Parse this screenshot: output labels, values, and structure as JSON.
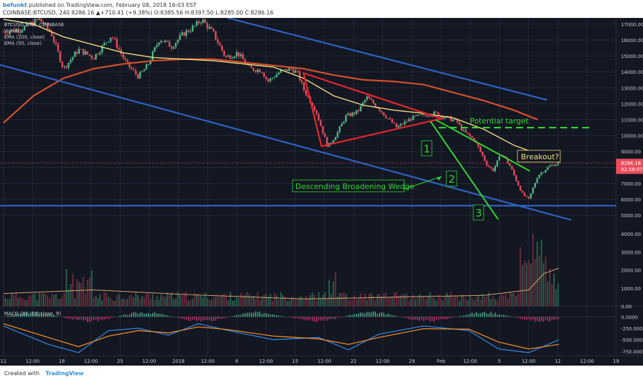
{
  "header": {
    "author": "befunkt",
    "published_text": " published on TradingView.com, February 08, 2018 16:03 EST",
    "ohlc_line": "COINBASE:BTCUSD, 240  8286.16  ▲+710.41 (+9.38%)  O:8385.56 H:8397.50 L:8285.00 C:8286.16"
  },
  "legends": {
    "symbol": "BTCUSD, 240, COINBASE",
    "vol": "Vol (20)",
    "ema200": "EMA (200, close)",
    "ema50": "EMA (50, close)",
    "macd": "MACD (12, 26, close, 9)"
  },
  "footer": {
    "created_with": "Created with",
    "brand": "TradingView"
  },
  "colors": {
    "bg": "#131722",
    "grid": "#232838",
    "up": "#53b987",
    "down": "#eb4d5c",
    "ema200": "#d9502c",
    "ema50": "#f3e282",
    "channel": "#2e63c6",
    "triangle": "#e8262e",
    "wedge": "#32d632",
    "target": "#32d632",
    "label_yellow": "#f3e282",
    "macd_line": "#2f86e0",
    "signal_line": "#f08a24"
  },
  "chart_data": {
    "type": "candlestick",
    "timeframe": "240",
    "price_axis_ticks": [
      17000,
      16000,
      15000,
      14000,
      13000,
      12000,
      11000,
      10000,
      9000,
      8000,
      7000,
      6000,
      5000
    ],
    "price_ylim": [
      4400,
      17300
    ],
    "volume_axis_ticks": [
      "4000.00",
      "3000.00",
      "2000.00",
      "1000.00",
      "0.00"
    ],
    "macd_axis_ticks": [
      "0.0000",
      "-250.0000",
      "-500.0000",
      "-750.0000"
    ],
    "x_tick_labels": [
      "11",
      "12:00",
      "18",
      "12:00",
      "25",
      "12:00",
      "2018",
      "12:00",
      "8",
      "12:00",
      "15",
      "12:00",
      "22",
      "12:00",
      "29",
      "Feb",
      "12:00",
      "5",
      "12:00",
      "12",
      "12:00",
      "19"
    ],
    "last_price": {
      "label": "8286.16",
      "value": 8286.16
    },
    "countdown_label": "02:58:07",
    "close_path": [
      [
        0,
        16500
      ],
      [
        6,
        16700
      ],
      [
        12,
        17300
      ],
      [
        16,
        16400
      ],
      [
        20,
        14200
      ],
      [
        25,
        15400
      ],
      [
        30,
        14900
      ],
      [
        36,
        16300
      ],
      [
        41,
        14500
      ],
      [
        45,
        13700
      ],
      [
        48,
        14400
      ],
      [
        52,
        16100
      ],
      [
        56,
        15600
      ],
      [
        60,
        16400
      ],
      [
        64,
        16900
      ],
      [
        66,
        17300
      ],
      [
        70,
        16400
      ],
      [
        74,
        14900
      ],
      [
        78,
        15200
      ],
      [
        82,
        14200
      ],
      [
        86,
        14100
      ],
      [
        88,
        13400
      ],
      [
        92,
        14000
      ],
      [
        96,
        14200
      ],
      [
        98,
        13900
      ],
      [
        100,
        12900
      ],
      [
        104,
        11600
      ],
      [
        108,
        9300
      ],
      [
        111,
        10100
      ],
      [
        114,
        11200
      ],
      [
        118,
        11500
      ],
      [
        121,
        12400
      ],
      [
        124,
        11900
      ],
      [
        127,
        11300
      ],
      [
        131,
        10500
      ],
      [
        136,
        11100
      ],
      [
        140,
        11300
      ],
      [
        144,
        11400
      ],
      [
        148,
        11100
      ],
      [
        151,
        10900
      ],
      [
        153,
        10300
      ],
      [
        157,
        9700
      ],
      [
        161,
        8200
      ],
      [
        163,
        7800
      ],
      [
        166,
        8900
      ],
      [
        169,
        8000
      ],
      [
        171,
        7100
      ],
      [
        173,
        6300
      ],
      [
        175,
        6000
      ],
      [
        178,
        7500
      ],
      [
        182,
        8100
      ],
      [
        185,
        8286
      ]
    ],
    "ema50_path": [
      [
        0,
        17300
      ],
      [
        10,
        17000
      ],
      [
        20,
        16200
      ],
      [
        30,
        15700
      ],
      [
        40,
        15200
      ],
      [
        50,
        14900
      ],
      [
        60,
        14800
      ],
      [
        70,
        14700
      ],
      [
        80,
        14500
      ],
      [
        90,
        14300
      ],
      [
        100,
        13600
      ],
      [
        110,
        12500
      ],
      [
        120,
        11900
      ],
      [
        130,
        11600
      ],
      [
        140,
        11400
      ],
      [
        150,
        11100
      ],
      [
        160,
        10400
      ],
      [
        170,
        9400
      ],
      [
        180,
        8700
      ],
      [
        185,
        8300
      ]
    ],
    "ema200_path": [
      [
        0,
        10800
      ],
      [
        10,
        12500
      ],
      [
        20,
        13600
      ],
      [
        30,
        14200
      ],
      [
        40,
        14500
      ],
      [
        50,
        14700
      ],
      [
        60,
        14800
      ],
      [
        70,
        14800
      ],
      [
        80,
        14600
      ],
      [
        90,
        14400
      ],
      [
        100,
        14200
      ],
      [
        110,
        13800
      ],
      [
        120,
        13500
      ],
      [
        130,
        13400
      ],
      [
        140,
        13200
      ],
      [
        150,
        12700
      ],
      [
        160,
        12200
      ],
      [
        170,
        11600
      ],
      [
        178,
        11000
      ]
    ],
    "volume_bars_approx_max": 4000,
    "annotations": [
      {
        "text": "Potential target",
        "value": 10500,
        "color": "#32d632"
      },
      {
        "text": "Breakout?",
        "color": "#f3e282"
      },
      {
        "text": "Descending Broadening Wedge",
        "color": "#32d632"
      },
      {
        "text": "1",
        "color": "#32d632"
      },
      {
        "text": "2",
        "color": "#32d632"
      },
      {
        "text": "3",
        "color": "#32d632"
      }
    ],
    "horizontal_support": 5600
  }
}
